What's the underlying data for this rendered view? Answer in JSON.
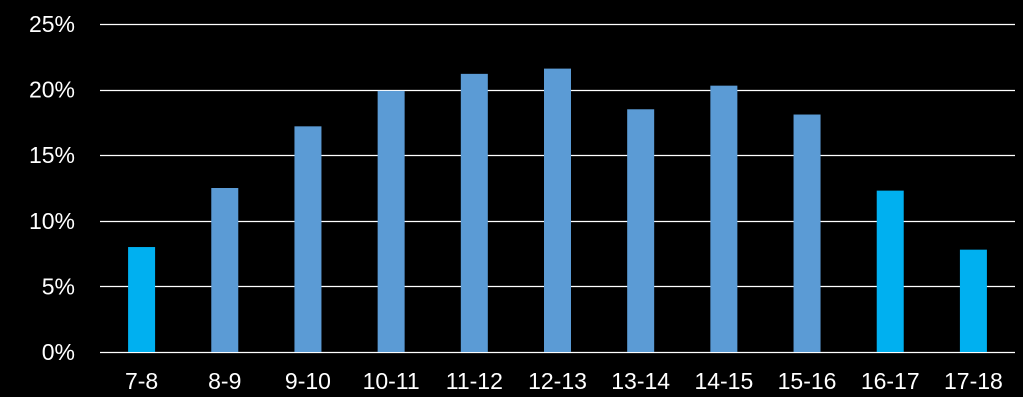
{
  "chart_data": {
    "type": "bar",
    "categories": [
      "7-8",
      "8-9",
      "9-10",
      "10-11",
      "11-12",
      "12-13",
      "13-14",
      "14-15",
      "15-16",
      "16-17",
      "17-18"
    ],
    "values": [
      8.0,
      12.5,
      17.2,
      19.9,
      21.2,
      21.6,
      18.5,
      20.3,
      18.1,
      12.3,
      7.8
    ],
    "bar_colors": [
      "#00B0F0",
      "#5B9BD5",
      "#5B9BD5",
      "#5B9BD5",
      "#5B9BD5",
      "#5B9BD5",
      "#5B9BD5",
      "#5B9BD5",
      "#5B9BD5",
      "#00B0F0",
      "#00B0F0"
    ],
    "ylim": [
      0,
      25
    ],
    "yticks": [
      0,
      5,
      10,
      15,
      20,
      25
    ],
    "ytick_labels": [
      "0%",
      "5%",
      "10%",
      "15%",
      "20%",
      "25%"
    ],
    "y_unit": "%",
    "grid": true,
    "legend": "none",
    "title": "",
    "xlabel": "",
    "ylabel": "",
    "colors": {
      "background": "#000000",
      "gridline": "#FFFFFF",
      "text": "#FFFFFF"
    }
  }
}
